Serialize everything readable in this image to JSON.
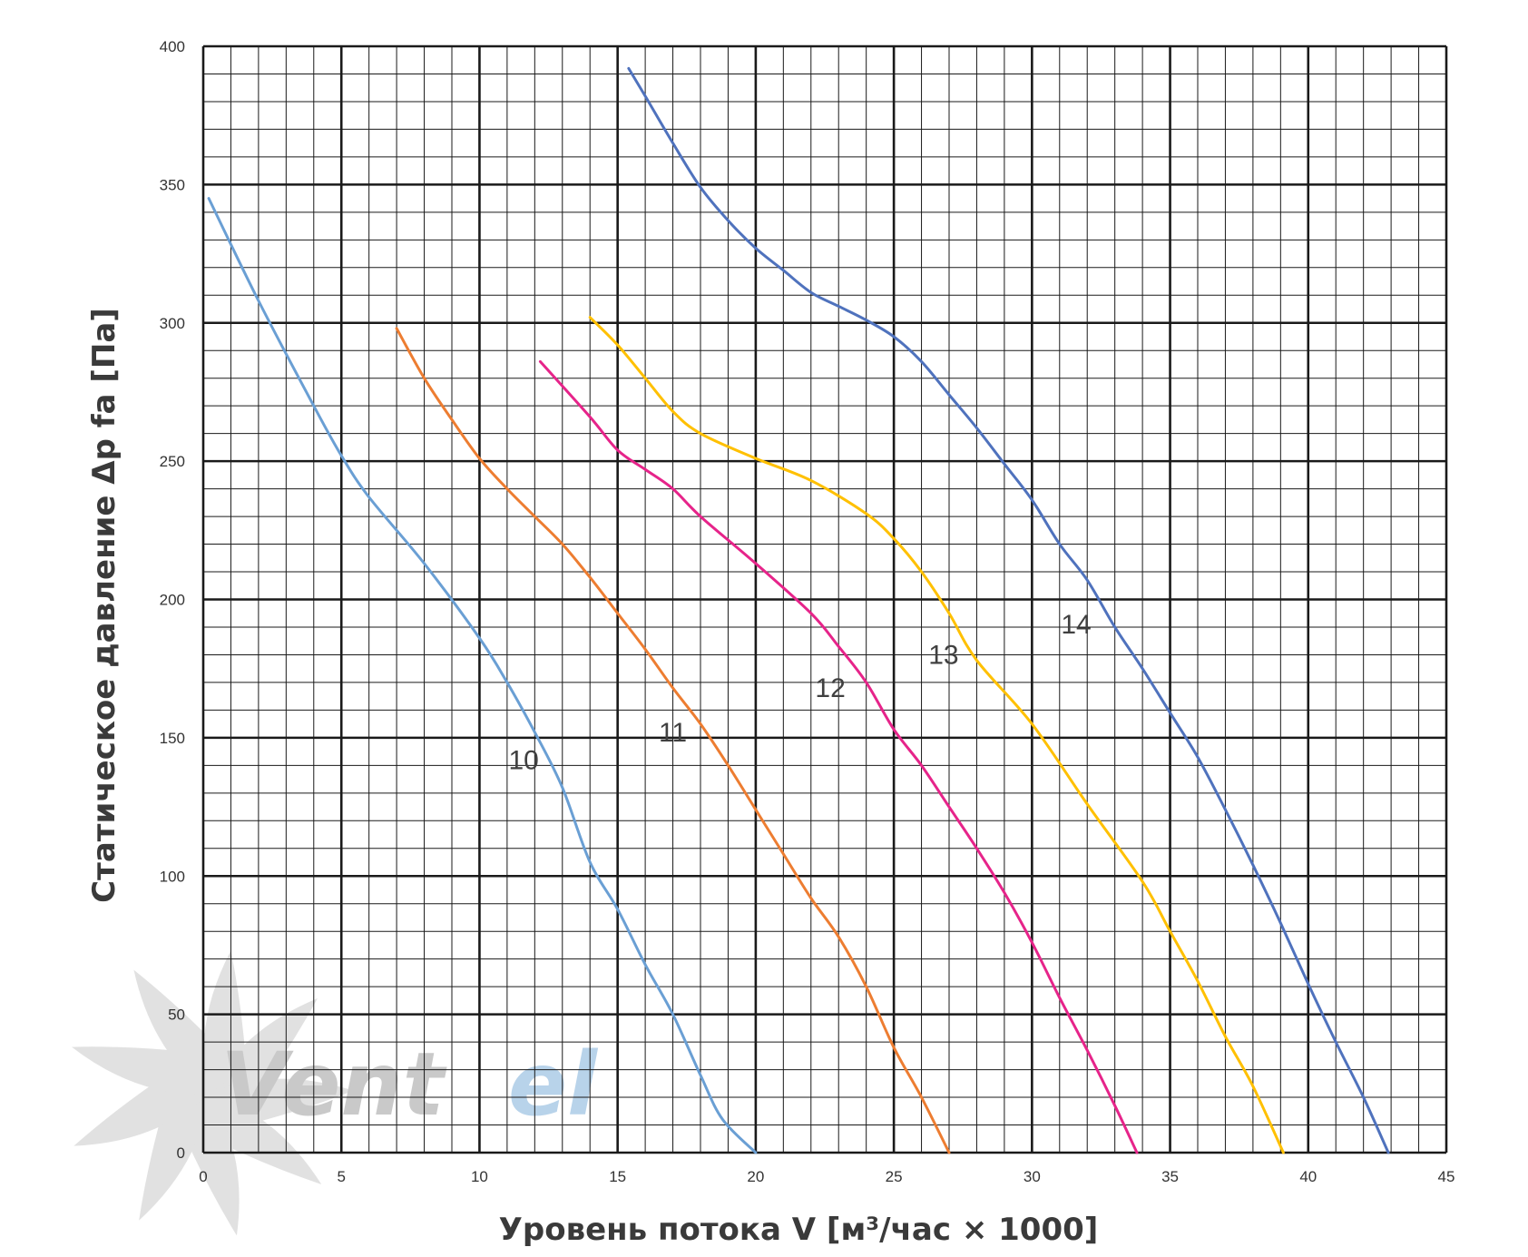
{
  "chart_data": {
    "type": "line",
    "xlabel": "Уровень потока V [м³/час × 1000]",
    "ylabel": "Статическое давление Δp fa [Па]",
    "xlim": [
      0,
      45
    ],
    "ylim": [
      0,
      400
    ],
    "x_ticks": [
      "0",
      "5",
      "10",
      "15",
      "20",
      "25",
      "30",
      "35",
      "40",
      "45"
    ],
    "y_ticks": [
      "0",
      "50",
      "100",
      "150",
      "200",
      "250",
      "300",
      "350",
      "400"
    ],
    "grid": true,
    "grid_major_x": 5,
    "grid_major_y": 50,
    "grid_minor_x": 1,
    "grid_minor_y": 10,
    "series": [
      {
        "name": "10",
        "color": "#6a9fd4",
        "label_at": [
          11.6,
          142
        ],
        "points": [
          [
            0.2,
            345
          ],
          [
            2.0,
            308
          ],
          [
            4.0,
            270
          ],
          [
            5.0,
            252
          ],
          [
            6.0,
            237
          ],
          [
            8.0,
            213
          ],
          [
            10.0,
            186
          ],
          [
            11.0,
            170
          ],
          [
            12.0,
            152
          ],
          [
            13.0,
            132
          ],
          [
            14.0,
            105
          ],
          [
            15.0,
            88
          ],
          [
            16.0,
            68
          ],
          [
            17.0,
            50
          ],
          [
            18.0,
            28
          ],
          [
            18.8,
            12
          ],
          [
            20.0,
            0
          ]
        ]
      },
      {
        "name": "11",
        "color": "#ed7d31",
        "label_at": [
          17.0,
          152
        ],
        "points": [
          [
            7.0,
            298
          ],
          [
            8.0,
            280
          ],
          [
            9.0,
            265
          ],
          [
            10.0,
            251
          ],
          [
            11.0,
            240
          ],
          [
            12.0,
            230
          ],
          [
            13.0,
            220
          ],
          [
            14.0,
            208
          ],
          [
            15.0,
            195
          ],
          [
            16.0,
            182
          ],
          [
            17.0,
            168
          ],
          [
            18.0,
            155
          ],
          [
            19.0,
            140
          ],
          [
            20.0,
            124
          ],
          [
            21.0,
            108
          ],
          [
            22.0,
            92
          ],
          [
            23.0,
            78
          ],
          [
            24.0,
            60
          ],
          [
            25.0,
            38
          ],
          [
            26.0,
            20
          ],
          [
            27.0,
            0
          ]
        ]
      },
      {
        "name": "12",
        "color": "#e6248a",
        "label_at": [
          22.7,
          168
        ],
        "points": [
          [
            12.2,
            286
          ],
          [
            14.0,
            266
          ],
          [
            15.0,
            254
          ],
          [
            16.0,
            247
          ],
          [
            17.0,
            240
          ],
          [
            18.0,
            230
          ],
          [
            20.0,
            213
          ],
          [
            22.0,
            195
          ],
          [
            23.0,
            183
          ],
          [
            24.0,
            170
          ],
          [
            25.0,
            153
          ],
          [
            26.0,
            140
          ],
          [
            27.0,
            125
          ],
          [
            28.0,
            110
          ],
          [
            29.0,
            94
          ],
          [
            30.0,
            76
          ],
          [
            31.0,
            56
          ],
          [
            32.0,
            37
          ],
          [
            33.0,
            17
          ],
          [
            33.8,
            0
          ]
        ]
      },
      {
        "name": "13",
        "color": "#ffc000",
        "label_at": [
          26.8,
          180
        ],
        "points": [
          [
            14.0,
            302
          ],
          [
            15.0,
            292
          ],
          [
            16.0,
            280
          ],
          [
            17.0,
            268
          ],
          [
            18.0,
            260
          ],
          [
            20.0,
            251
          ],
          [
            22.0,
            243
          ],
          [
            24.0,
            231
          ],
          [
            25.0,
            222
          ],
          [
            26.0,
            210
          ],
          [
            27.0,
            195
          ],
          [
            28.0,
            178
          ],
          [
            30.0,
            155
          ],
          [
            32.0,
            126
          ],
          [
            34.0,
            98
          ],
          [
            35.0,
            80
          ],
          [
            36.0,
            62
          ],
          [
            37.0,
            42
          ],
          [
            38.0,
            24
          ],
          [
            39.1,
            0
          ]
        ]
      },
      {
        "name": "14",
        "color": "#4f72bd",
        "label_at": [
          31.6,
          191
        ],
        "points": [
          [
            15.4,
            392
          ],
          [
            16.0,
            382
          ],
          [
            17.0,
            365
          ],
          [
            18.0,
            349
          ],
          [
            19.0,
            337
          ],
          [
            20.0,
            327
          ],
          [
            21.0,
            319
          ],
          [
            22.0,
            311
          ],
          [
            23.0,
            306
          ],
          [
            24.0,
            301
          ],
          [
            25.0,
            295
          ],
          [
            26.0,
            286
          ],
          [
            27.0,
            274
          ],
          [
            28.0,
            262
          ],
          [
            29.0,
            249
          ],
          [
            30.0,
            236
          ],
          [
            31.0,
            220
          ],
          [
            32.0,
            207
          ],
          [
            33.0,
            190
          ],
          [
            34.0,
            175
          ],
          [
            35.0,
            159
          ],
          [
            36.0,
            143
          ],
          [
            37.0,
            124
          ],
          [
            38.0,
            104
          ],
          [
            39.0,
            83
          ],
          [
            40.0,
            61
          ],
          [
            41.0,
            40
          ],
          [
            42.0,
            20
          ],
          [
            42.9,
            0
          ]
        ]
      }
    ]
  },
  "watermark": {
    "text_main": "Vent",
    "text_accent": "el",
    "color_main": "#c9c9c9",
    "color_accent": "#b8d3ea"
  }
}
